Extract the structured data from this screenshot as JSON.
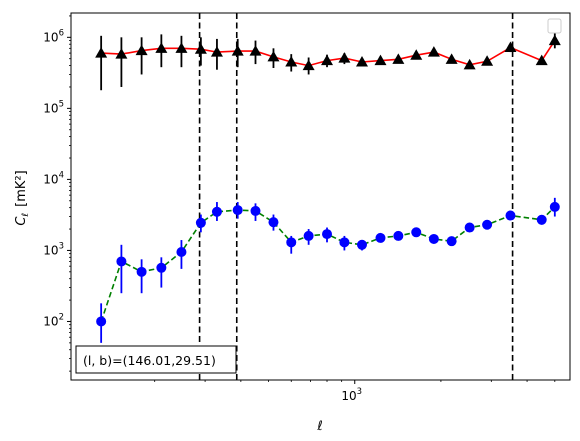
{
  "chart_data": {
    "type": "scatter",
    "x_scale": "log",
    "y_scale": "log",
    "xlim": [
      102,
      5650
    ],
    "ylim": [
      15,
      2200000
    ],
    "xlabel": "ℓ",
    "ylabel_main": "C",
    "ylabel_sub": "ℓ",
    "ylabel_unit": "[mK²]",
    "x_ticks": [
      {
        "value": 1000,
        "base": "10",
        "exp": "3"
      }
    ],
    "y_ticks": [
      {
        "value": 100,
        "base": "10",
        "exp": "2"
      },
      {
        "value": 1000,
        "base": "10",
        "exp": "3"
      },
      {
        "value": 10000,
        "base": "10",
        "exp": "4"
      },
      {
        "value": 100000,
        "base": "10",
        "exp": "5"
      },
      {
        "value": 1000000,
        "base": "10",
        "exp": "6"
      }
    ],
    "vlines": [
      287,
      387,
      3560
    ],
    "annotation": "(l, b)=(146.01,29.51)",
    "legend": "top-right (empty box)",
    "series": [
      {
        "marker": "triangle",
        "marker_color": "#000000",
        "line_color": "#ff0000",
        "line_style": "solid",
        "points": [
          {
            "x": 130,
            "y": 600000,
            "lo": 180000,
            "hi": 1050000
          },
          {
            "x": 153,
            "y": 580000,
            "lo": 200000,
            "hi": 1000000
          },
          {
            "x": 180,
            "y": 650000,
            "lo": 300000,
            "hi": 1000000
          },
          {
            "x": 211,
            "y": 700000,
            "lo": 380000,
            "hi": 1100000
          },
          {
            "x": 248,
            "y": 700000,
            "lo": 380000,
            "hi": 1050000
          },
          {
            "x": 290,
            "y": 680000,
            "lo": 400000,
            "hi": 1000000
          },
          {
            "x": 330,
            "y": 620000,
            "lo": 350000,
            "hi": 950000
          },
          {
            "x": 390,
            "y": 640000,
            "lo": 380000,
            "hi": 950000
          },
          {
            "x": 450,
            "y": 640000,
            "lo": 420000,
            "hi": 900000
          },
          {
            "x": 520,
            "y": 530000,
            "lo": 370000,
            "hi": 700000
          },
          {
            "x": 600,
            "y": 450000,
            "lo": 330000,
            "hi": 580000
          },
          {
            "x": 690,
            "y": 400000,
            "lo": 300000,
            "hi": 520000
          },
          {
            "x": 800,
            "y": 470000,
            "lo": 380000,
            "hi": 570000
          },
          {
            "x": 920,
            "y": 510000,
            "lo": 420000,
            "hi": 600000
          },
          {
            "x": 1060,
            "y": 450000,
            "lo": 400000,
            "hi": 510000
          },
          {
            "x": 1230,
            "y": 470000,
            "lo": 410000,
            "hi": 530000
          },
          {
            "x": 1420,
            "y": 490000,
            "lo": 430000,
            "hi": 560000
          },
          {
            "x": 1640,
            "y": 560000,
            "lo": 500000,
            "hi": 620000
          },
          {
            "x": 1890,
            "y": 620000,
            "lo": 550000,
            "hi": 690000
          },
          {
            "x": 2180,
            "y": 490000,
            "lo": 440000,
            "hi": 540000
          },
          {
            "x": 2520,
            "y": 410000,
            "lo": 370000,
            "hi": 450000
          },
          {
            "x": 2900,
            "y": 460000,
            "lo": 420000,
            "hi": 500000
          },
          {
            "x": 3500,
            "y": 720000,
            "lo": 620000,
            "hi": 800000
          },
          {
            "x": 4500,
            "y": 470000,
            "lo": 420000,
            "hi": 520000
          },
          {
            "x": 5000,
            "y": 900000,
            "lo": 700000,
            "hi": 1200000
          }
        ]
      },
      {
        "marker": "circle",
        "marker_color": "#0000ff",
        "line_color": "#008000",
        "line_style": "dashed",
        "points": [
          {
            "x": 130,
            "y": 100,
            "lo": 50,
            "hi": 180
          },
          {
            "x": 153,
            "y": 700,
            "lo": 250,
            "hi": 1200
          },
          {
            "x": 180,
            "y": 500,
            "lo": 250,
            "hi": 750
          },
          {
            "x": 211,
            "y": 570,
            "lo": 300,
            "hi": 800
          },
          {
            "x": 248,
            "y": 950,
            "lo": 550,
            "hi": 1400
          },
          {
            "x": 290,
            "y": 2450,
            "lo": 1800,
            "hi": 3200
          },
          {
            "x": 330,
            "y": 3500,
            "lo": 2600,
            "hi": 4800
          },
          {
            "x": 390,
            "y": 3700,
            "lo": 2800,
            "hi": 4800
          },
          {
            "x": 450,
            "y": 3600,
            "lo": 2600,
            "hi": 4600
          },
          {
            "x": 520,
            "y": 2500,
            "lo": 1900,
            "hi": 3200
          },
          {
            "x": 600,
            "y": 1300,
            "lo": 900,
            "hi": 1600
          },
          {
            "x": 690,
            "y": 1600,
            "lo": 1200,
            "hi": 2000
          },
          {
            "x": 800,
            "y": 1700,
            "lo": 1300,
            "hi": 2100
          },
          {
            "x": 920,
            "y": 1300,
            "lo": 1000,
            "hi": 1600
          },
          {
            "x": 1060,
            "y": 1200,
            "lo": 1000,
            "hi": 1400
          },
          {
            "x": 1230,
            "y": 1500,
            "lo": 1300,
            "hi": 1700
          },
          {
            "x": 1420,
            "y": 1600,
            "lo": 1400,
            "hi": 1800
          },
          {
            "x": 1640,
            "y": 1800,
            "lo": 1600,
            "hi": 2000
          },
          {
            "x": 1890,
            "y": 1450,
            "lo": 1300,
            "hi": 1600
          },
          {
            "x": 2180,
            "y": 1350,
            "lo": 1200,
            "hi": 1500
          },
          {
            "x": 2520,
            "y": 2100,
            "lo": 1900,
            "hi": 2300
          },
          {
            "x": 2900,
            "y": 2300,
            "lo": 2100,
            "hi": 2500
          },
          {
            "x": 3500,
            "y": 3100,
            "lo": 2700,
            "hi": 3600
          },
          {
            "x": 4500,
            "y": 2700,
            "lo": 2300,
            "hi": 3100
          },
          {
            "x": 5000,
            "y": 4100,
            "lo": 3000,
            "hi": 5500
          }
        ]
      }
    ]
  }
}
